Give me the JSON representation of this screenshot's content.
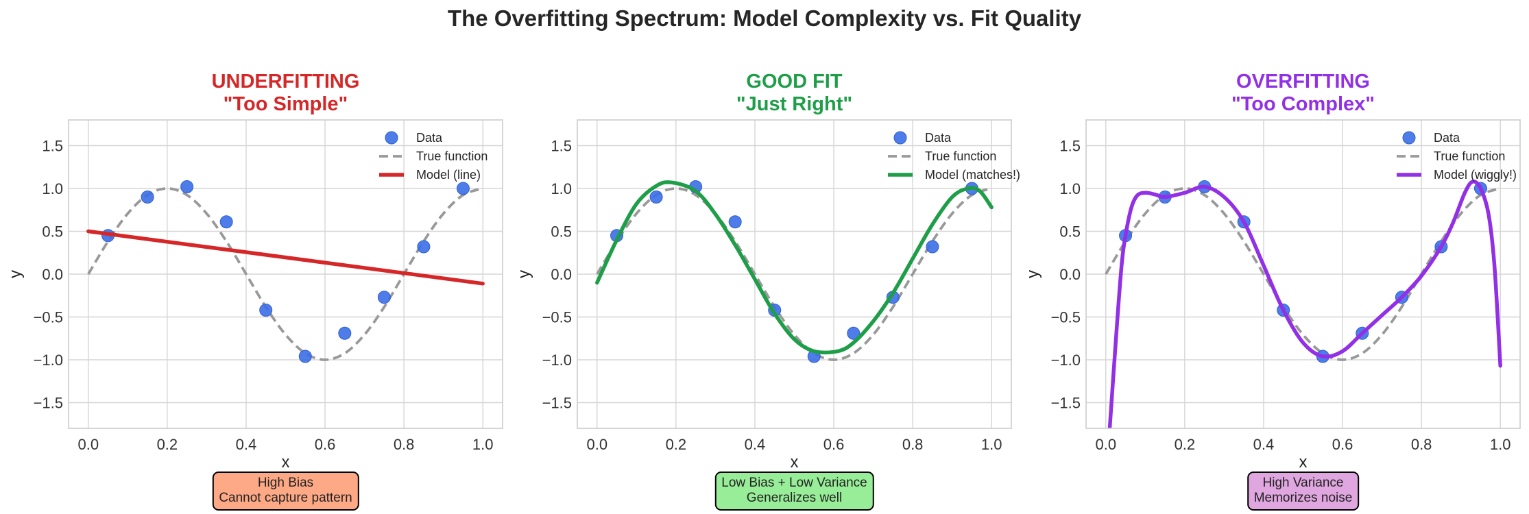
{
  "figure": {
    "title": "The Overfitting Spectrum: Model Complexity vs. Fit Quality"
  },
  "colors": {
    "data_points": "#3b6fe8",
    "true_function": "#999999",
    "underfit": "#d62728",
    "goodfit": "#1e9e48",
    "overfit": "#9230e6"
  },
  "chart_data": [
    {
      "type": "line",
      "title": "UNDERFITTING",
      "subtitle": "\"Too Simple\"",
      "title_color": "#d62728",
      "xlabel": "x",
      "ylabel": "y",
      "xlim": [
        -0.05,
        1.05
      ],
      "ylim": [
        -1.8,
        1.8
      ],
      "xticks": [
        0.0,
        0.2,
        0.4,
        0.6,
        0.8,
        1.0
      ],
      "xtick_labels": [
        "0.0",
        "0.2",
        "0.4",
        "0.6",
        "0.8",
        "1.0"
      ],
      "yticks": [
        -1.5,
        -1.0,
        -0.5,
        0.0,
        0.5,
        1.0,
        1.5
      ],
      "ytick_labels": [
        "−1.5",
        "−1.0",
        "−0.5",
        "0.0",
        "0.5",
        "1.0",
        "1.5"
      ],
      "grid": true,
      "legend_position": "top-right",
      "scatter": {
        "name": "Data",
        "x": [
          0.05,
          0.15,
          0.25,
          0.35,
          0.45,
          0.55,
          0.65,
          0.75,
          0.85,
          0.95
        ],
        "y": [
          0.45,
          0.9,
          1.02,
          0.61,
          -0.42,
          -0.96,
          -0.69,
          -0.27,
          0.32,
          1.0
        ]
      },
      "true_function": {
        "name": "True function",
        "x": [
          0.0,
          0.05,
          0.1,
          0.15,
          0.2,
          0.25,
          0.3,
          0.35,
          0.4,
          0.45,
          0.5,
          0.55,
          0.6,
          0.65,
          0.7,
          0.75,
          0.8,
          0.85,
          0.9,
          0.95,
          1.0
        ],
        "y": [
          0.0,
          0.383,
          0.707,
          0.924,
          1.0,
          0.924,
          0.707,
          0.383,
          0.0,
          -0.383,
          -0.707,
          -0.924,
          -1.0,
          -0.924,
          -0.707,
          -0.383,
          0.0,
          0.383,
          0.707,
          0.924,
          1.0
        ]
      },
      "model": {
        "name": "Model (line)",
        "color": "#d62728",
        "x": [
          0.0,
          1.0
        ],
        "y": [
          0.5,
          -0.11
        ]
      },
      "annotation": [
        "High Bias",
        "Cannot capture pattern"
      ],
      "annotation_bg": "#fea986"
    },
    {
      "type": "line",
      "title": "GOOD FIT",
      "subtitle": "\"Just Right\"",
      "title_color": "#1e9e48",
      "xlabel": "x",
      "ylabel": "y",
      "xlim": [
        -0.05,
        1.05
      ],
      "ylim": [
        -1.8,
        1.8
      ],
      "xticks": [
        0.0,
        0.2,
        0.4,
        0.6,
        0.8,
        1.0
      ],
      "xtick_labels": [
        "0.0",
        "0.2",
        "0.4",
        "0.6",
        "0.8",
        "1.0"
      ],
      "yticks": [
        -1.5,
        -1.0,
        -0.5,
        0.0,
        0.5,
        1.0,
        1.5
      ],
      "ytick_labels": [
        "−1.5",
        "−1.0",
        "−0.5",
        "0.0",
        "0.5",
        "1.0",
        "1.5"
      ],
      "grid": true,
      "legend_position": "top-right",
      "scatter": {
        "name": "Data",
        "x": [
          0.05,
          0.15,
          0.25,
          0.35,
          0.45,
          0.55,
          0.65,
          0.75,
          0.85,
          0.95
        ],
        "y": [
          0.45,
          0.9,
          1.02,
          0.61,
          -0.42,
          -0.96,
          -0.69,
          -0.27,
          0.32,
          1.0
        ]
      },
      "true_function": {
        "name": "True function",
        "x": [
          0.0,
          0.05,
          0.1,
          0.15,
          0.2,
          0.25,
          0.3,
          0.35,
          0.4,
          0.45,
          0.5,
          0.55,
          0.6,
          0.65,
          0.7,
          0.75,
          0.8,
          0.85,
          0.9,
          0.95,
          1.0
        ],
        "y": [
          0.0,
          0.383,
          0.707,
          0.924,
          1.0,
          0.924,
          0.707,
          0.383,
          0.0,
          -0.383,
          -0.707,
          -0.924,
          -1.0,
          -0.924,
          -0.707,
          -0.383,
          0.0,
          0.383,
          0.707,
          0.924,
          1.0
        ]
      },
      "model": {
        "name": "Model (matches!)",
        "color": "#1e9e48",
        "x": [
          0.0,
          0.05,
          0.1,
          0.15,
          0.19,
          0.25,
          0.3,
          0.35,
          0.4,
          0.45,
          0.5,
          0.55,
          0.61,
          0.65,
          0.7,
          0.75,
          0.8,
          0.85,
          0.9,
          0.94,
          0.97,
          1.0
        ],
        "y": [
          -0.1,
          0.4,
          0.82,
          1.03,
          1.07,
          0.97,
          0.7,
          0.34,
          -0.06,
          -0.46,
          -0.76,
          -0.9,
          -0.9,
          -0.8,
          -0.55,
          -0.22,
          0.18,
          0.58,
          0.9,
          1.0,
          0.97,
          0.78
        ]
      },
      "annotation": [
        "Low Bias + Low Variance",
        "Generalizes well"
      ],
      "annotation_bg": "#98ee98"
    },
    {
      "type": "line",
      "title": "OVERFITTING",
      "subtitle": "\"Too Complex\"",
      "title_color": "#9230e6",
      "xlabel": "x",
      "ylabel": "y",
      "xlim": [
        -0.05,
        1.05
      ],
      "ylim": [
        -1.8,
        1.8
      ],
      "xticks": [
        0.0,
        0.2,
        0.4,
        0.6,
        0.8,
        1.0
      ],
      "xtick_labels": [
        "0.0",
        "0.2",
        "0.4",
        "0.6",
        "0.8",
        "1.0"
      ],
      "yticks": [
        -1.5,
        -1.0,
        -0.5,
        0.0,
        0.5,
        1.0,
        1.5
      ],
      "ytick_labels": [
        "−1.5",
        "−1.0",
        "−0.5",
        "0.0",
        "0.5",
        "1.0",
        "1.5"
      ],
      "grid": true,
      "legend_position": "top-right",
      "scatter": {
        "name": "Data",
        "x": [
          0.05,
          0.15,
          0.25,
          0.35,
          0.45,
          0.55,
          0.65,
          0.75,
          0.85,
          0.95
        ],
        "y": [
          0.45,
          0.9,
          1.02,
          0.61,
          -0.42,
          -0.96,
          -0.69,
          -0.27,
          0.32,
          1.0
        ]
      },
      "true_function": {
        "name": "True function",
        "x": [
          0.0,
          0.05,
          0.1,
          0.15,
          0.2,
          0.25,
          0.3,
          0.35,
          0.4,
          0.45,
          0.5,
          0.55,
          0.6,
          0.65,
          0.7,
          0.75,
          0.8,
          0.85,
          0.9,
          0.95,
          1.0
        ],
        "y": [
          0.0,
          0.383,
          0.707,
          0.924,
          1.0,
          0.924,
          0.707,
          0.383,
          0.0,
          -0.383,
          -0.707,
          -0.924,
          -1.0,
          -0.924,
          -0.707,
          -0.383,
          0.0,
          0.383,
          0.707,
          0.924,
          1.0
        ]
      },
      "model": {
        "name": "Model (wiggly!)",
        "color": "#9230e6",
        "x": [
          0.01,
          0.025,
          0.04,
          0.05,
          0.065,
          0.08,
          0.1,
          0.125,
          0.15,
          0.2,
          0.25,
          0.3,
          0.35,
          0.4,
          0.45,
          0.5,
          0.55,
          0.6,
          0.65,
          0.7,
          0.75,
          0.8,
          0.85,
          0.88,
          0.91,
          0.93,
          0.95,
          0.97,
          0.985,
          1.0
        ],
        "y": [
          -1.8,
          -0.8,
          0.1,
          0.45,
          0.78,
          0.92,
          0.95,
          0.93,
          0.9,
          0.95,
          1.02,
          0.9,
          0.61,
          0.1,
          -0.42,
          -0.8,
          -0.96,
          -0.9,
          -0.69,
          -0.48,
          -0.27,
          -0.02,
          0.32,
          0.6,
          0.95,
          1.08,
          1.0,
          0.7,
          0.1,
          -1.07
        ]
      },
      "annotation": [
        "High Variance",
        "Memorizes noise"
      ],
      "annotation_bg": "#dfa6df"
    }
  ]
}
